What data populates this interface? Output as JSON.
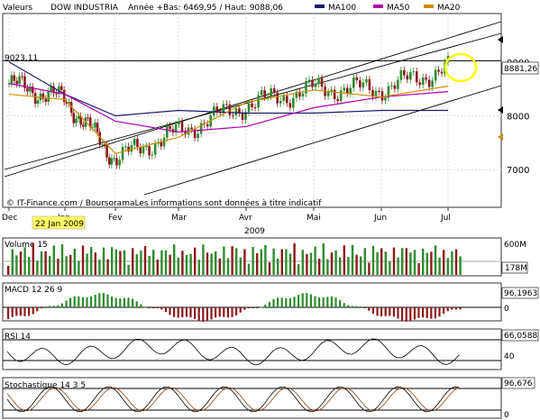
{
  "header": {
    "label": "Valeurs",
    "series_name": "DOW INDUSTRIA",
    "stats": "Année +Bas: 6469,95 / Haut: 9088,06",
    "ma100": "MA100",
    "ma50": "MA50",
    "ma20": "MA20"
  },
  "colors": {
    "price_up": "#2e8b2e",
    "price_down": "#8b1a1a",
    "ma100": "#1a1a6e",
    "ma50": "#b000b0",
    "ma20": "#d08a00",
    "channel": "#000000",
    "highlight_circle": "#ffff00",
    "date_box": "#ffff66"
  },
  "source_note": "© IT-Finance.com / BoursoramaLes informations sont données à titre indicatif",
  "annotations": {
    "level_label": "9023,11",
    "last_price": "8881,26",
    "highlight_date": "22 Jan 2009",
    "year": "2009"
  },
  "chart_data": {
    "type": "line",
    "title": "DOW INDUSTRIA",
    "x_ticks": [
      "Dec",
      "Jan",
      "Fev",
      "Mar",
      "Avr",
      "Mai",
      "Jun",
      "Jul"
    ],
    "price_panel": {
      "y_ticks": [
        7000,
        8000,
        9000
      ],
      "ylim": [
        6300,
        9900
      ],
      "horizontal_level": 9023.11,
      "last_value": 8881.26,
      "close_monthly": [
        {
          "month": "Dec",
          "value": 8600
        },
        {
          "month": "Jan",
          "value": 8300
        },
        {
          "month": "Fev",
          "value": 7200
        },
        {
          "month": "Mar",
          "value": 7700
        },
        {
          "month": "Avr",
          "value": 8200
        },
        {
          "month": "Mai",
          "value": 8500
        },
        {
          "month": "Jun",
          "value": 8500
        },
        {
          "month": "Jul",
          "value": 8880
        }
      ],
      "series": [
        {
          "name": "MA100",
          "values": [
            9000,
            8400,
            8000,
            8100,
            8050,
            8050,
            8100,
            8100
          ]
        },
        {
          "name": "MA50",
          "values": [
            8600,
            8400,
            7900,
            7700,
            7800,
            8150,
            8350,
            8450
          ]
        },
        {
          "name": "MA20",
          "values": [
            8400,
            8300,
            7300,
            7600,
            8250,
            8480,
            8350,
            8550
          ]
        }
      ]
    },
    "volume_panel": {
      "title": "Volume 15",
      "y_ticks": [
        "600M"
      ],
      "last_value": "178M"
    },
    "macd_panel": {
      "title": "MACD 12 26 9",
      "y_ticks": [
        "0"
      ],
      "last_value": "96,1963"
    },
    "rsi_panel": {
      "title": "RSI 14",
      "y_ticks": [
        "40"
      ],
      "last_value": "66,0588"
    },
    "stochastic_panel": {
      "title": "Stochastique 14 3 5",
      "y_ticks": [
        "0"
      ],
      "last_value": "96,676"
    }
  }
}
